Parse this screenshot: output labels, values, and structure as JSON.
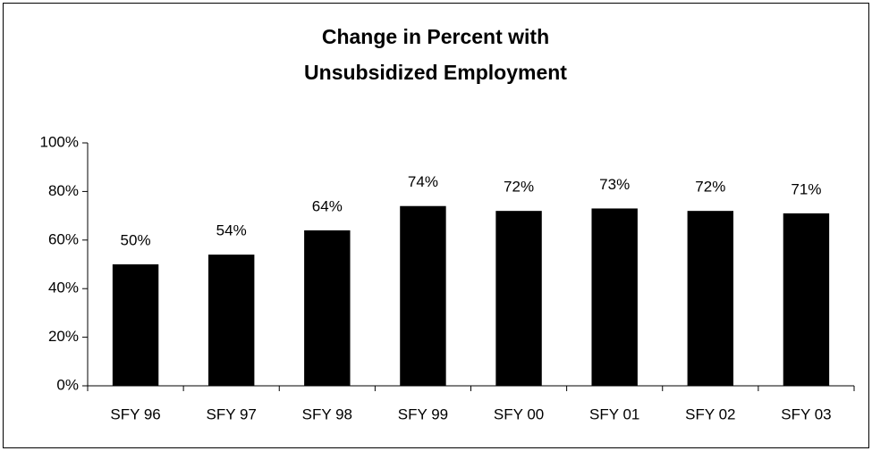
{
  "chart_data": {
    "type": "bar",
    "title": [
      "Change in Percent with",
      "Unsubsidized Employment"
    ],
    "categories": [
      "SFY 96",
      "SFY 97",
      "SFY 98",
      "SFY 99",
      "SFY 00",
      "SFY 01",
      "SFY 02",
      "SFY 03"
    ],
    "values": [
      50,
      54,
      64,
      74,
      72,
      73,
      72,
      71
    ],
    "value_labels": [
      "50%",
      "54%",
      "64%",
      "74%",
      "72%",
      "73%",
      "72%",
      "71%"
    ],
    "color": "#000000",
    "ylim": [
      0,
      100
    ],
    "yticks": [
      {
        "value": 0,
        "label": "0%"
      },
      {
        "value": 20,
        "label": "20%"
      },
      {
        "value": 40,
        "label": "40%"
      },
      {
        "value": 60,
        "label": "60%"
      },
      {
        "value": 80,
        "label": "80%"
      },
      {
        "value": 100,
        "label": "100%"
      }
    ],
    "grid": false
  }
}
